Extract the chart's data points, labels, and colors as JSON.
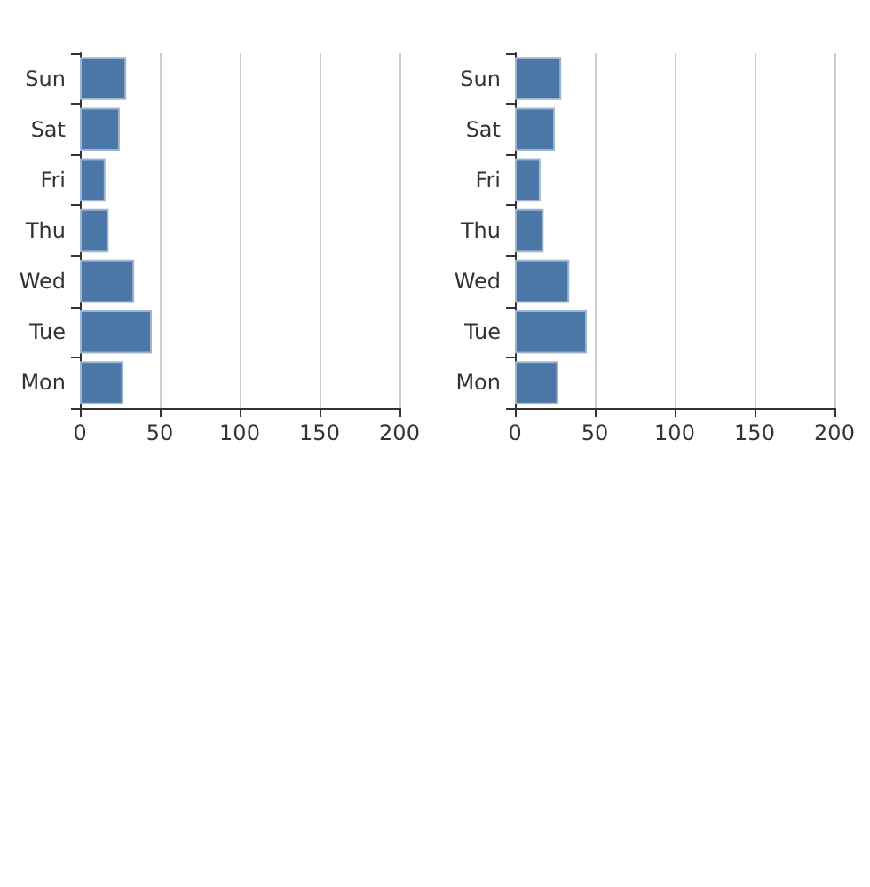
{
  "chart_data": [
    {
      "type": "bar",
      "orientation": "horizontal",
      "categories": [
        "Sun",
        "Sat",
        "Fri",
        "Thu",
        "Wed",
        "Tue",
        "Mon"
      ],
      "values": [
        29,
        25,
        16,
        18,
        34,
        45,
        27
      ],
      "color": "#4a76a8",
      "xlim": [
        0,
        200
      ],
      "xticks": [
        0,
        50,
        100,
        150,
        200
      ],
      "grid": "x"
    },
    {
      "type": "bar",
      "orientation": "horizontal",
      "categories": [
        "Sun",
        "Sat",
        "Fri",
        "Thu",
        "Wed",
        "Tue",
        "Mon"
      ],
      "values": [
        29,
        25,
        16,
        18,
        34,
        45,
        27
      ],
      "color": "#4a76a8",
      "xlim": [
        0,
        200
      ],
      "xticks": [
        0,
        50,
        100,
        150,
        200
      ],
      "grid": "x"
    }
  ]
}
